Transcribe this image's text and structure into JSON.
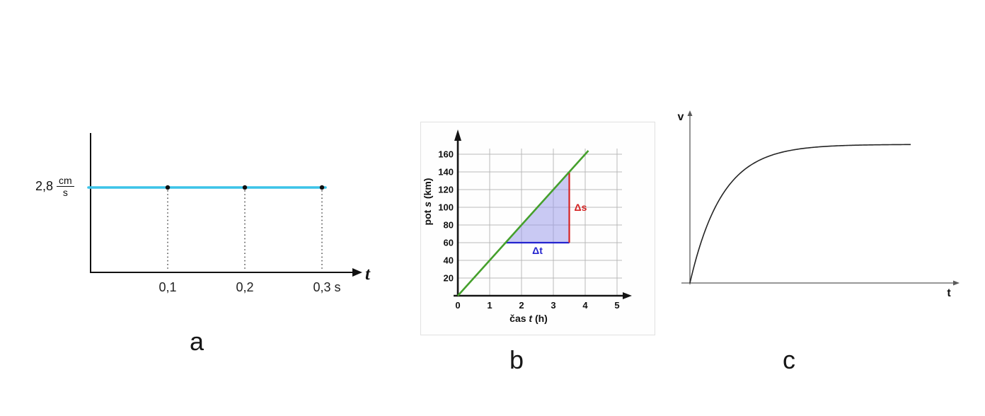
{
  "chart_data": [
    {
      "id": "a",
      "type": "line",
      "letter_label": "a",
      "title": "",
      "description": "constant velocity vs time",
      "x": [
        0.1,
        0.2,
        0.3
      ],
      "y": [
        2.8,
        2.8,
        2.8
      ],
      "x_tick_labels": [
        "0,1",
        "0,2",
        "0,3 s"
      ],
      "y_value_label": "2,8",
      "y_unit_numerator": "cm",
      "y_unit_denominator": "s",
      "x_axis_symbol": "t",
      "constant_value": 2.8,
      "xlim": [
        0,
        0.34
      ],
      "grid": false,
      "legend": "none",
      "line_color": "#3cc3e8",
      "marker_color": "#111111"
    },
    {
      "id": "b",
      "type": "line",
      "letter_label": "b",
      "xlabel": "čas t (h)",
      "ylabel": "pot s (km)",
      "xlabel_parts": [
        {
          "text": "čas ",
          "italic": false
        },
        {
          "text": "t",
          "italic": true
        },
        {
          "text": " (h)",
          "italic": false
        }
      ],
      "ylabel_parts": [
        {
          "text": "pot ",
          "italic": false
        },
        {
          "text": "s",
          "italic": true
        },
        {
          "text": " (km)",
          "italic": false
        }
      ],
      "x": [
        0,
        1,
        2,
        3,
        4
      ],
      "y": [
        0,
        40,
        80,
        120,
        160
      ],
      "x_ticks": [
        0,
        1,
        2,
        3,
        4,
        5
      ],
      "y_ticks": [
        20,
        40,
        60,
        80,
        100,
        120,
        140,
        160
      ],
      "xlim": [
        0,
        5.3
      ],
      "ylim": [
        0,
        168
      ],
      "grid": true,
      "grid_color": "#b9b9b9",
      "axis_color": "#141414",
      "line": {
        "x": [
          0,
          4.1
        ],
        "y": [
          0,
          164
        ],
        "color": "#45a02c"
      },
      "slope_km_per_h": 40,
      "triangle": {
        "t_start": 1.5,
        "t_end": 3.5,
        "s_start": 60,
        "s_end": 140,
        "fill": "#9d9dea",
        "fill_opacity": 0.55,
        "delta_t": {
          "label": "Δt",
          "color": "#2424cf"
        },
        "delta_s": {
          "label": "Δs",
          "color": "#d42222"
        }
      }
    },
    {
      "id": "c",
      "type": "line",
      "letter_label": "c",
      "ylabel": "v",
      "xlabel": "t",
      "description": "velocity rises steeply then saturates toward a limiting value",
      "curve": {
        "kind": "exponential-saturation",
        "v_max_fraction_of_axis": 0.83,
        "tau_fraction_of_t_axis": 0.145
      },
      "line_color": "#242424",
      "axis_color": "#5a5a5a"
    }
  ]
}
